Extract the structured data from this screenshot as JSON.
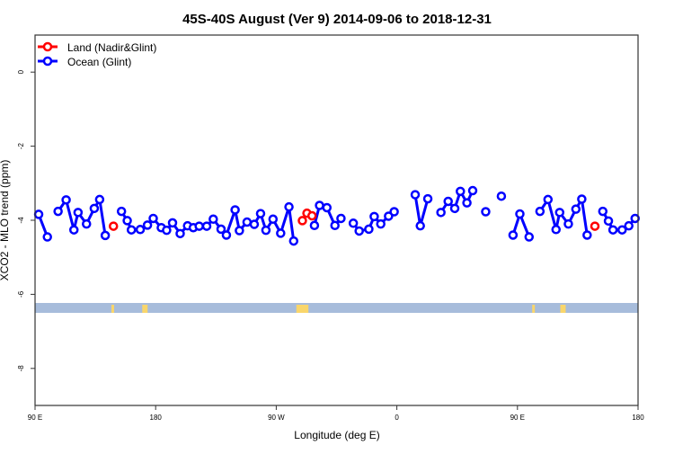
{
  "chart_data": {
    "type": "line",
    "title": "45S-40S August (Ver 9)   2014-09-06 to 2018-12-31",
    "xlabel": "Longitude (deg E)",
    "ylabel": "XCO2 - MLO trend (ppm)",
    "xlim": [
      90,
      540
    ],
    "ylim": [
      -9,
      1
    ],
    "x_ticks": [
      {
        "value": 90,
        "label": "90 E"
      },
      {
        "value": 180,
        "label": "180"
      },
      {
        "value": 270,
        "label": "90 W"
      },
      {
        "value": 360,
        "label": "0"
      },
      {
        "value": 450,
        "label": "90 E"
      },
      {
        "value": 540,
        "label": "180"
      }
    ],
    "y_ticks": [
      {
        "value": 0,
        "label": "0"
      },
      {
        "value": -2,
        "label": "-2"
      },
      {
        "value": -4,
        "label": "-4"
      },
      {
        "value": -6,
        "label": "-6"
      },
      {
        "value": -8,
        "label": "-8"
      }
    ],
    "grid": false,
    "legend_position": "top-left",
    "series": [
      {
        "name": "Land (Nadir&Glint)",
        "color": "#ff0000",
        "segments": [
          [
            [
              148.5,
              -4.16
            ]
          ],
          [
            [
              289.5,
              -4.01
            ],
            [
              292.9,
              -3.81
            ],
            [
              296.7,
              -3.88
            ]
          ],
          [
            [
              507.8,
              -4.16
            ]
          ]
        ]
      },
      {
        "name": "Ocean (Glint)",
        "color": "#0000ff",
        "segments": [
          [
            [
              92.7,
              -3.84
            ],
            [
              99.2,
              -4.45
            ]
          ],
          [
            [
              107.2,
              -3.76
            ],
            [
              113.2,
              -3.45
            ],
            [
              119.0,
              -4.26
            ],
            [
              122.1,
              -3.79
            ],
            [
              128.4,
              -4.1
            ],
            [
              134.2,
              -3.68
            ],
            [
              138.2,
              -3.44
            ],
            [
              142.4,
              -4.41
            ]
          ],
          [
            [
              154.5,
              -3.76
            ],
            [
              158.8,
              -4.01
            ],
            [
              161.9,
              -4.26
            ],
            [
              168.5,
              -4.25
            ],
            [
              173.9,
              -4.13
            ],
            [
              178.2,
              -3.95
            ],
            [
              184.2,
              -4.2
            ],
            [
              188.2,
              -4.27
            ],
            [
              192.6,
              -4.07
            ],
            [
              198.3,
              -4.36
            ],
            [
              203.8,
              -4.15
            ],
            [
              208.1,
              -4.2
            ],
            [
              212.5,
              -4.16
            ],
            [
              218.1,
              -4.16
            ],
            [
              223.0,
              -3.97
            ],
            [
              228.8,
              -4.24
            ],
            [
              232.8,
              -4.4
            ],
            [
              239.3,
              -3.72
            ],
            [
              242.5,
              -4.28
            ],
            [
              248.2,
              -4.05
            ],
            [
              253.6,
              -4.11
            ],
            [
              258.3,
              -3.82
            ],
            [
              262.3,
              -4.27
            ],
            [
              267.6,
              -3.97
            ],
            [
              273.3,
              -4.35
            ],
            [
              279.5,
              -3.64
            ],
            [
              283.0,
              -4.56
            ]
          ],
          [
            [
              298.5,
              -4.14
            ],
            [
              302.3,
              -3.6
            ],
            [
              307.8,
              -3.66
            ],
            [
              313.8,
              -4.14
            ],
            [
              318.3,
              -3.95
            ]
          ],
          [
            [
              327.5,
              -4.08
            ],
            [
              331.9,
              -4.29
            ],
            [
              339.1,
              -4.24
            ],
            [
              343.1,
              -3.9
            ],
            [
              348.0,
              -4.1
            ],
            [
              353.8,
              -3.89
            ],
            [
              358.0,
              -3.77
            ]
          ],
          [
            [
              373.7,
              -3.31
            ],
            [
              377.5,
              -4.15
            ],
            [
              383.1,
              -3.42
            ]
          ],
          [
            [
              392.9,
              -3.79
            ],
            [
              398.3,
              -3.49
            ],
            [
              403.2,
              -3.68
            ],
            [
              407.4,
              -3.22
            ],
            [
              412.3,
              -3.53
            ],
            [
              416.6,
              -3.2
            ]
          ],
          [
            [
              426.3,
              -3.77
            ]
          ],
          [
            [
              438.0,
              -3.35
            ]
          ],
          [
            [
              446.7,
              -4.4
            ],
            [
              451.8,
              -3.83
            ],
            [
              458.7,
              -4.45
            ]
          ],
          [
            [
              466.8,
              -3.76
            ],
            [
              472.8,
              -3.44
            ],
            [
              478.8,
              -4.25
            ],
            [
              481.5,
              -3.79
            ],
            [
              488.0,
              -4.1
            ],
            [
              493.6,
              -3.7
            ],
            [
              498.0,
              -3.43
            ],
            [
              502.0,
              -4.4
            ]
          ],
          [
            [
              513.7,
              -3.76
            ],
            [
              517.9,
              -4.02
            ],
            [
              521.3,
              -4.26
            ],
            [
              528.1,
              -4.26
            ],
            [
              533.1,
              -4.15
            ],
            [
              537.8,
              -3.95
            ]
          ]
        ]
      }
    ],
    "land_sea_strip": {
      "ocean_color": "#a7bcdb",
      "land_color": "#f9d66b",
      "land_lon_ranges": [
        [
          147,
          149
        ],
        [
          170,
          174
        ],
        [
          285,
          294
        ],
        [
          461,
          463
        ],
        [
          482,
          486
        ]
      ]
    }
  }
}
